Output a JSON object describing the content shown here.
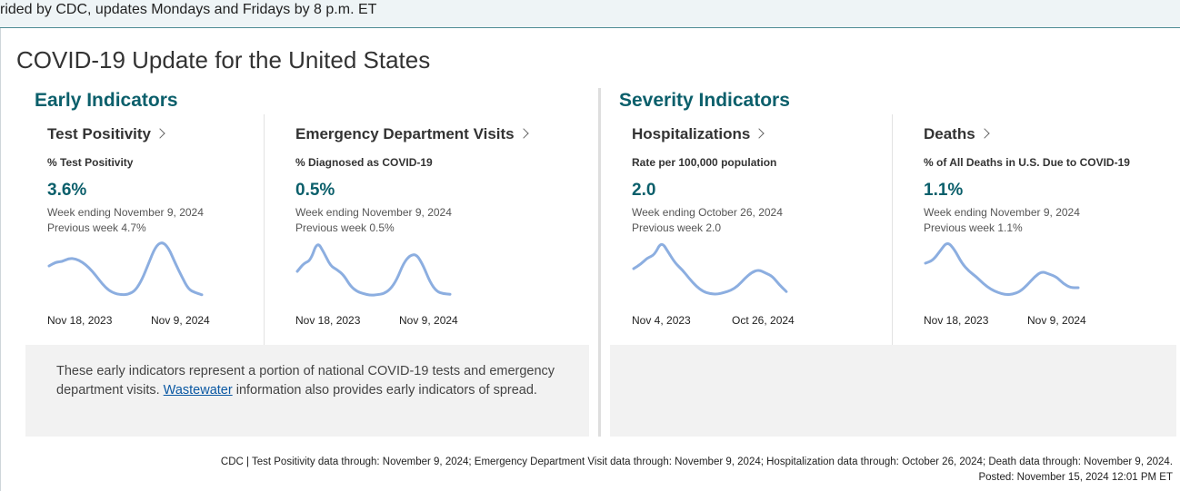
{
  "banner": {
    "text": "rided by CDC, updates Mondays and Fridays by 8 p.m. ET"
  },
  "page_title": "COVID-19 Update for the United States",
  "early": {
    "heading": "Early Indicators"
  },
  "severity": {
    "heading": "Severity Indicators"
  },
  "cards": [
    {
      "name": "Test Positivity",
      "subtitle": "% Test Positivity",
      "value": "3.6%",
      "week": "Week ending November 9, 2024",
      "prev": "Previous week 4.7%",
      "x_start": "Nov 18, 2023",
      "x_end": "Nov 9, 2024",
      "trend": [
        0.55,
        0.62,
        0.63,
        0.69,
        0.68,
        0.62,
        0.52,
        0.38,
        0.22,
        0.1,
        0.04,
        0.02,
        0.03,
        0.1,
        0.3,
        0.6,
        0.9,
        1.0,
        0.88,
        0.6,
        0.35,
        0.12,
        0.06,
        0.02
      ]
    },
    {
      "name": "Emergency Department Visits",
      "subtitle": "% Diagnosed as COVID-19",
      "value": "0.5%",
      "week": "Week ending November 9, 2024",
      "prev": "Previous week 0.5%",
      "x_start": "Nov 18, 2023",
      "x_end": "Nov 9, 2024",
      "trend": [
        0.45,
        0.6,
        0.65,
        1.0,
        0.8,
        0.55,
        0.48,
        0.38,
        0.18,
        0.08,
        0.04,
        0.01,
        0.02,
        0.04,
        0.12,
        0.3,
        0.6,
        0.75,
        0.76,
        0.55,
        0.25,
        0.08,
        0.04,
        0.03
      ]
    },
    {
      "name": "Hospitalizations",
      "subtitle": "Rate per 100,000 population",
      "value": "2.0",
      "week": "Week ending October 26, 2024",
      "prev": "Previous week 2.0",
      "x_start": "Nov 4, 2023",
      "x_end": "Oct 26, 2024",
      "trend": [
        0.5,
        0.58,
        0.7,
        0.75,
        1.0,
        0.8,
        0.6,
        0.48,
        0.32,
        0.18,
        0.08,
        0.04,
        0.03,
        0.06,
        0.1,
        0.18,
        0.32,
        0.43,
        0.48,
        0.42,
        0.36,
        0.2,
        0.08
      ]
    },
    {
      "name": "Deaths",
      "subtitle": "% of All Deaths in U.S. Due to COVID-19",
      "value": "1.1%",
      "week": "Week ending November 9, 2024",
      "prev": "Previous week 1.1%",
      "x_start": "Nov 18, 2023",
      "x_end": "Nov 9, 2024",
      "trend": [
        0.6,
        0.65,
        0.82,
        1.0,
        0.85,
        0.6,
        0.45,
        0.35,
        0.22,
        0.12,
        0.06,
        0.02,
        0.03,
        0.08,
        0.2,
        0.35,
        0.45,
        0.4,
        0.35,
        0.22,
        0.15,
        0.15
      ]
    }
  ],
  "note": {
    "before": "These early indicators represent a portion of national COVID-19 tests and emergency department visits. ",
    "link": "Wastewater",
    "after": " information also provides early indicators of spread."
  },
  "footer": {
    "line1": "CDC | Test Positivity data through: November 9, 2024; Emergency Department Visit data through: November 9, 2024; Hospitalization data through: October 26, 2024; Death data through: November 9, 2024.",
    "line2": "Posted: November 15, 2024 12:01 PM ET"
  },
  "colors": {
    "accent": "#0b5f6b",
    "trend_line": "#8caee0",
    "panel": "#f2f2f2"
  }
}
